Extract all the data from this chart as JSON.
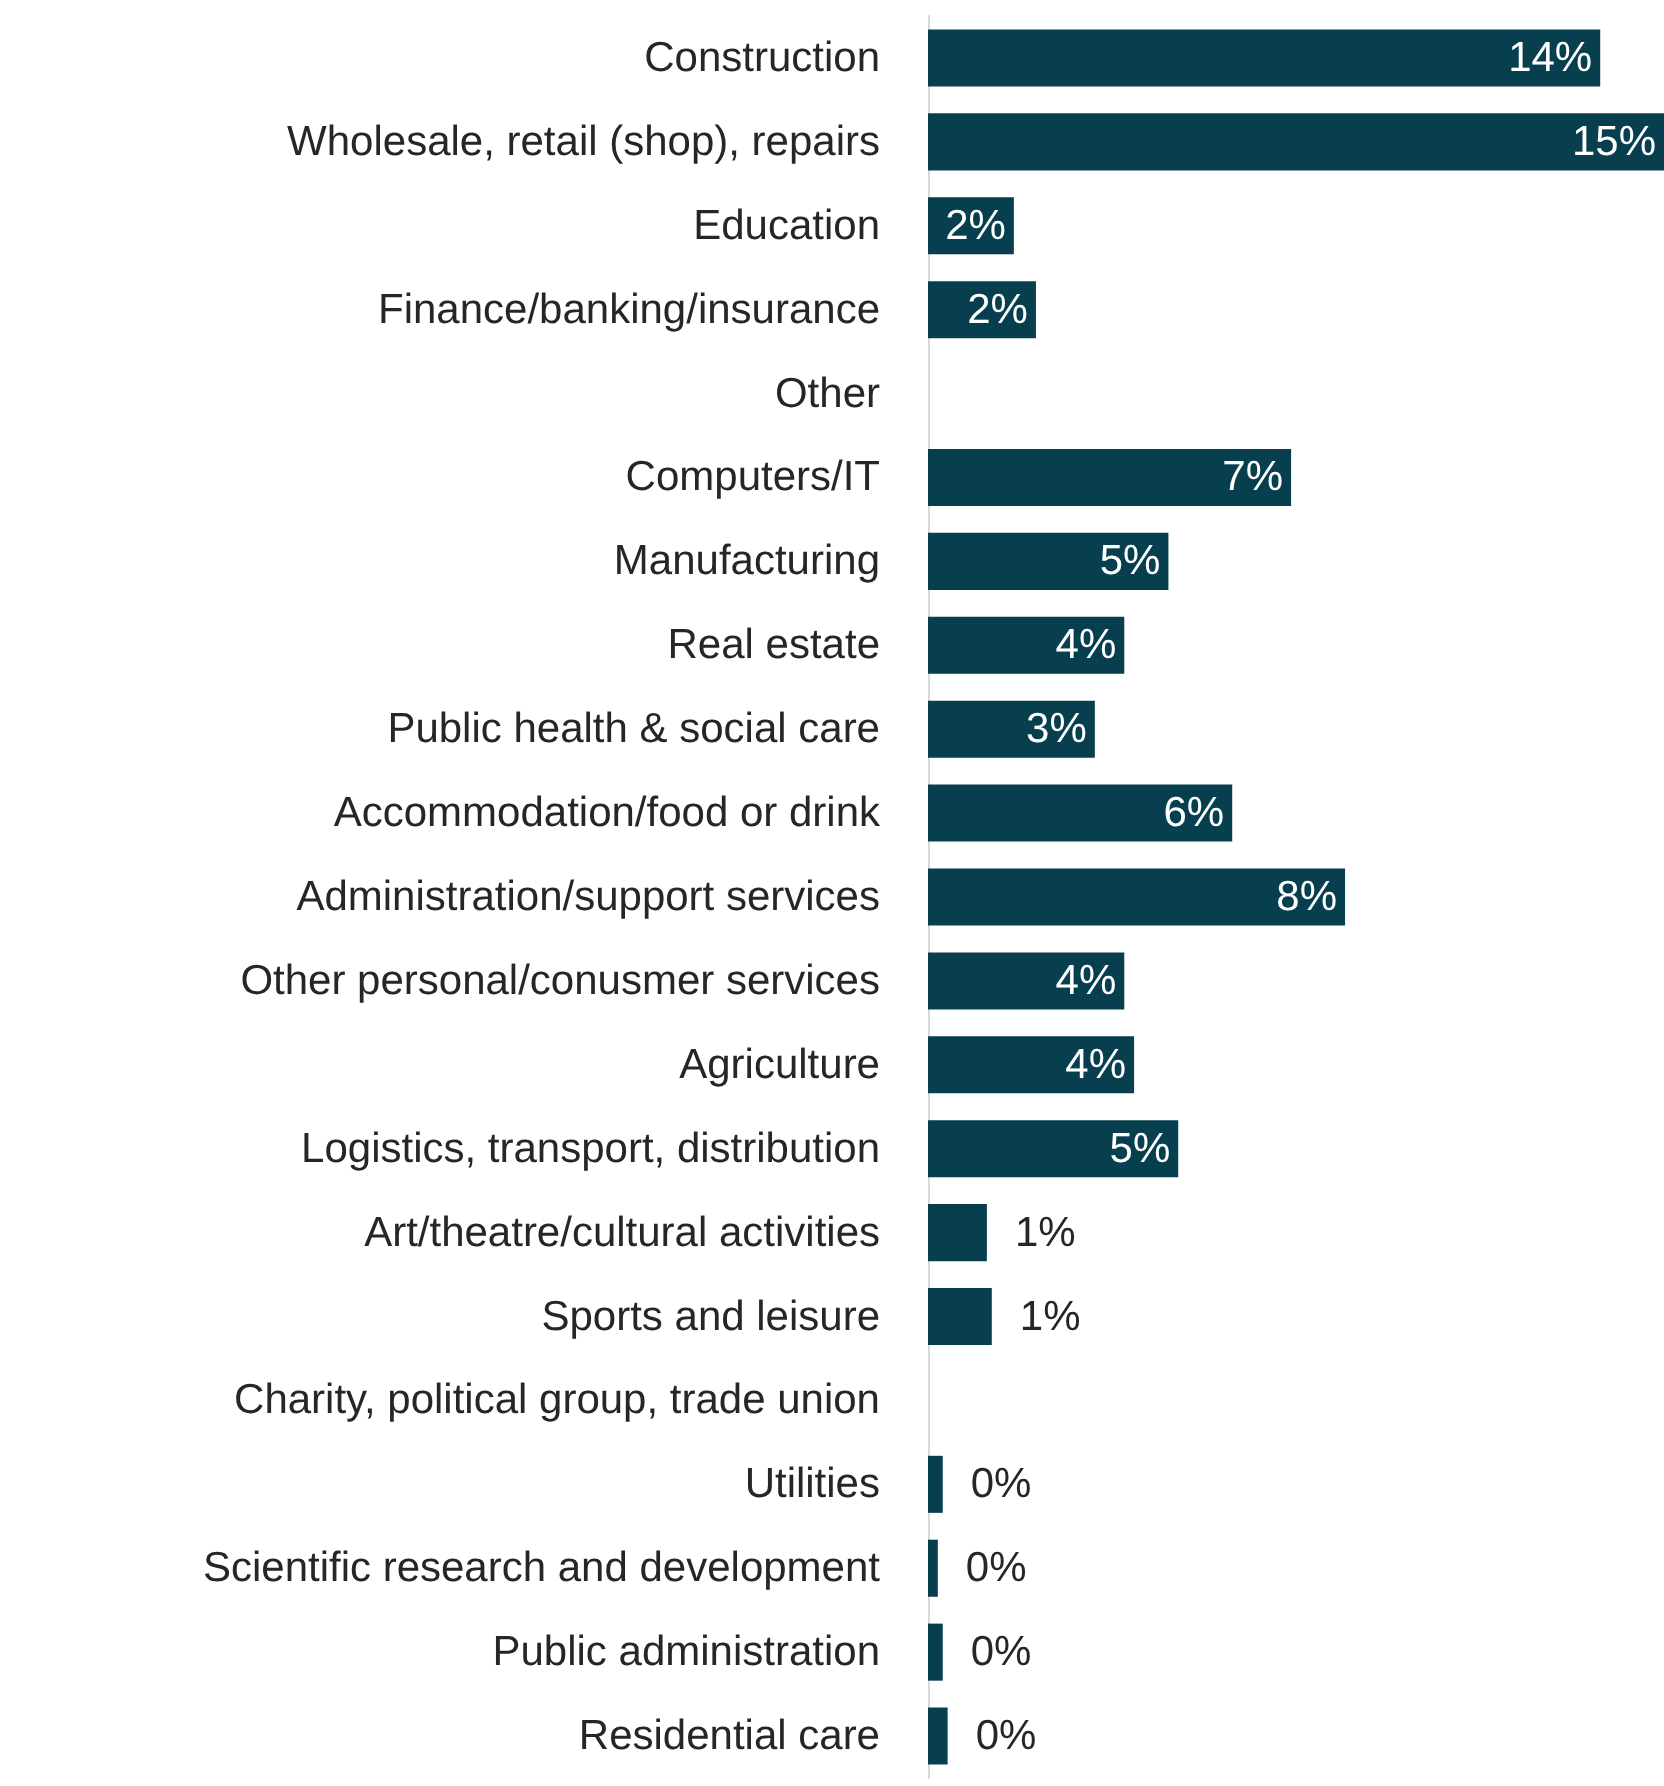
{
  "chart_data": {
    "type": "bar",
    "orientation": "horizontal",
    "categories": [
      "Construction",
      "Wholesale, retail (shop), repairs",
      "Education",
      "Finance/banking/insurance",
      "Other",
      "Computers/IT",
      "Manufacturing",
      "Real estate",
      "Public health & social care",
      "Accommodation/food or drink",
      "Administration/support services",
      "Other personal/conusmer services",
      "Agriculture",
      "Logistics, transport, distribution",
      "Art/theatre/cultural activities",
      "Sports and leisure",
      "Charity, political group, trade union",
      "Utilities",
      "Scientific research and development",
      "Public administration",
      "Residential care"
    ],
    "values": [
      13.7,
      15,
      1.75,
      2.2,
      null,
      7.4,
      4.9,
      4.0,
      3.4,
      6.2,
      8.5,
      4.0,
      4.2,
      5.1,
      1.2,
      1.3,
      null,
      0.3,
      0.2,
      0.3,
      0.4
    ],
    "value_labels": [
      "14%",
      "15%",
      "2%",
      "2%",
      null,
      "7%",
      "5%",
      "4%",
      "3%",
      "6%",
      "8%",
      "4%",
      "4%",
      "5%",
      "1%",
      "1%",
      null,
      "0%",
      "0%",
      "0%",
      "0%"
    ],
    "color": "#073f4f"
  }
}
